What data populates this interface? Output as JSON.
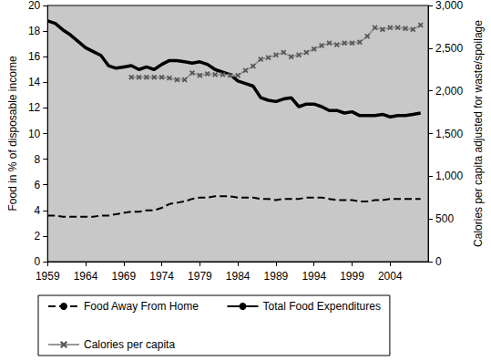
{
  "chart_data": {
    "type": "line",
    "ylabel": "Food in % of disposable income",
    "y2label": "Calories per capita adjusted for waste/spoilage",
    "x": [
      1959,
      1960,
      1961,
      1962,
      1963,
      1964,
      1965,
      1966,
      1967,
      1968,
      1969,
      1970,
      1971,
      1972,
      1973,
      1974,
      1975,
      1976,
      1977,
      1978,
      1979,
      1980,
      1981,
      1982,
      1983,
      1984,
      1985,
      1986,
      1987,
      1988,
      1989,
      1990,
      1991,
      1992,
      1993,
      1994,
      1995,
      1996,
      1997,
      1998,
      1999,
      2000,
      2001,
      2002,
      2003,
      2004,
      2005,
      2006,
      2007,
      2008
    ],
    "xlim": [
      1959,
      2009
    ],
    "xticks": [
      1959,
      1964,
      1969,
      1974,
      1979,
      1984,
      1989,
      1994,
      1999,
      2004
    ],
    "ylim": [
      0,
      20
    ],
    "yticks": [
      0,
      2,
      4,
      6,
      8,
      10,
      12,
      14,
      16,
      18,
      20
    ],
    "y2lim": [
      0,
      3000
    ],
    "y2ticks": [
      0,
      500,
      1000,
      1500,
      2000,
      2500,
      3000
    ],
    "legend": "bottom",
    "series": [
      {
        "name": "Food Away From Home",
        "color": "#000000",
        "line_style": "dashed",
        "marker": "none",
        "values": [
          3.6,
          3.6,
          3.5,
          3.5,
          3.5,
          3.5,
          3.5,
          3.6,
          3.6,
          3.7,
          3.8,
          3.9,
          3.9,
          4.0,
          4.0,
          4.2,
          4.5,
          4.6,
          4.7,
          4.9,
          5.0,
          5.0,
          5.1,
          5.1,
          5.1,
          5.0,
          5.0,
          5.0,
          4.9,
          4.9,
          4.8,
          4.9,
          4.9,
          4.9,
          5.0,
          5.0,
          5.0,
          4.9,
          4.8,
          4.8,
          4.8,
          4.7,
          4.7,
          4.8,
          4.8,
          4.9,
          4.9,
          4.9,
          4.9,
          4.9
        ]
      },
      {
        "name": "Total Food Expenditures",
        "color": "#000000",
        "line_style": "solid",
        "marker": "none",
        "values": [
          18.8,
          18.6,
          18.1,
          17.7,
          17.2,
          16.7,
          16.4,
          16.1,
          15.3,
          15.1,
          15.2,
          15.3,
          15.0,
          15.2,
          15.0,
          15.4,
          15.7,
          15.7,
          15.6,
          15.5,
          15.6,
          15.4,
          15.0,
          14.8,
          14.6,
          14.1,
          13.9,
          13.7,
          12.8,
          12.6,
          12.5,
          12.7,
          12.8,
          12.1,
          12.3,
          12.3,
          12.1,
          11.8,
          11.8,
          11.6,
          11.7,
          11.4,
          11.4,
          11.4,
          11.5,
          11.3,
          11.4,
          11.4,
          11.5,
          11.6
        ]
      },
      {
        "name": "Calories per capita",
        "color": "#999999",
        "line_style": "solid",
        "marker": "x",
        "axis": "y2",
        "values": [
          null,
          null,
          null,
          null,
          null,
          null,
          null,
          null,
          null,
          null,
          null,
          2160,
          2160,
          2160,
          2160,
          2160,
          2150,
          2130,
          2130,
          2210,
          2180,
          2200,
          2190,
          2190,
          2180,
          2180,
          2240,
          2290,
          2370,
          2390,
          2420,
          2450,
          2400,
          2420,
          2450,
          2490,
          2530,
          2560,
          2540,
          2560,
          2560,
          2570,
          2640,
          2740,
          2720,
          2740,
          2740,
          2730,
          2720,
          2770
        ]
      }
    ]
  }
}
